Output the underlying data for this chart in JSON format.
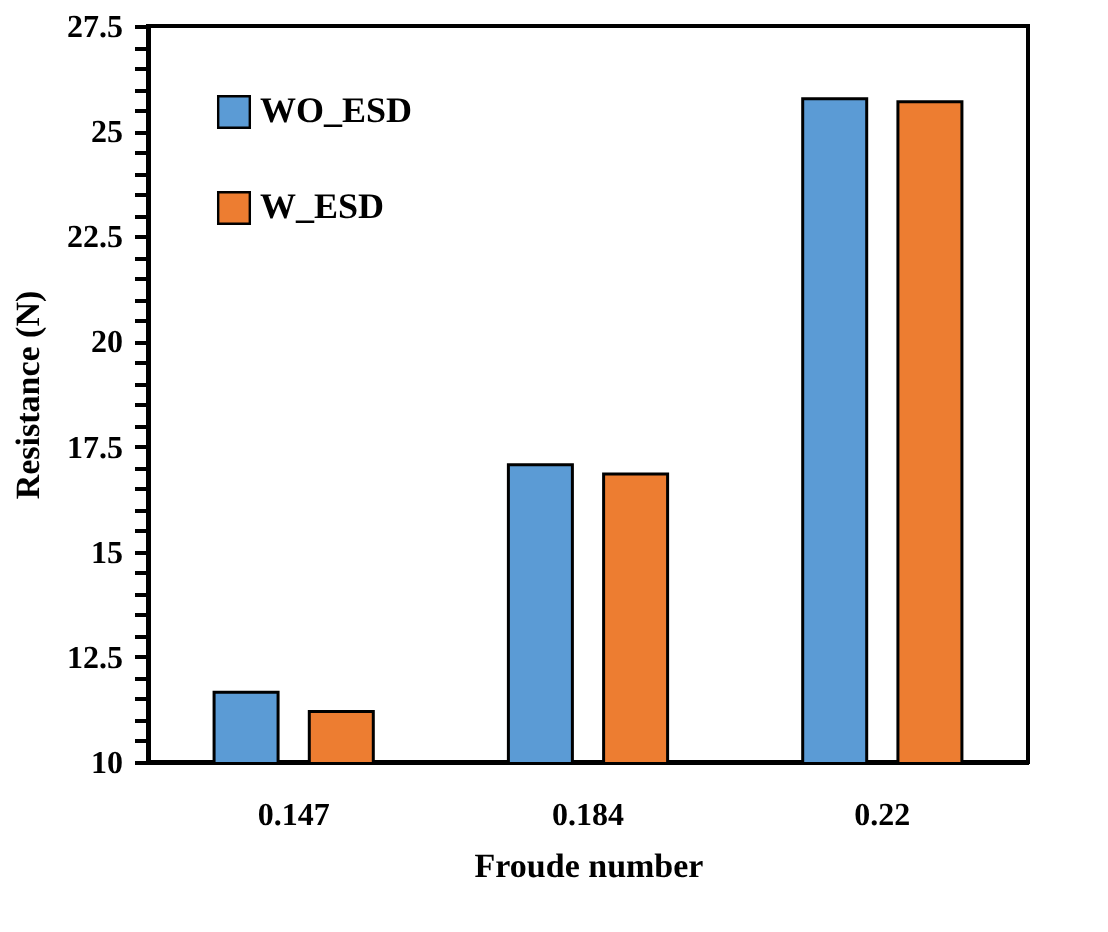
{
  "chart_data": {
    "type": "bar",
    "xlabel": "Froude number",
    "ylabel": "Resistance (N)",
    "categories": [
      "0.147",
      "0.184",
      "0.22"
    ],
    "series": [
      {
        "name": "WO_ESD",
        "color": "#5b9bd5",
        "values": [
          11.66,
          17.07,
          25.77
        ]
      },
      {
        "name": "W_ESD",
        "color": "#ed7d31",
        "values": [
          11.2,
          16.85,
          25.7
        ]
      }
    ],
    "ylim": [
      10,
      27.5
    ],
    "yticks": [
      10,
      {
        "value": 10.5,
        "label": null
      },
      {
        "value": 11,
        "label": null
      },
      {
        "value": 11.5,
        "label": null
      },
      {
        "value": 12,
        "label": null
      },
      12.5,
      {
        "value": 13,
        "label": null
      },
      {
        "value": 13.5,
        "label": null
      },
      {
        "value": 14,
        "label": null
      },
      {
        "value": 14.5,
        "label": null
      },
      15,
      {
        "value": 15.5,
        "label": null
      },
      {
        "value": 16,
        "label": null
      },
      {
        "value": 16.5,
        "label": null
      },
      {
        "value": 17,
        "label": null
      },
      17.5,
      {
        "value": 18,
        "label": null
      },
      {
        "value": 18.5,
        "label": null
      },
      {
        "value": 19,
        "label": null
      },
      {
        "value": 19.5,
        "label": null
      },
      20,
      {
        "value": 20.5,
        "label": null
      },
      {
        "value": 21,
        "label": null
      },
      {
        "value": 21.5,
        "label": null
      },
      {
        "value": 22,
        "label": null
      },
      22.5,
      {
        "value": 23,
        "label": null
      },
      {
        "value": 23.5,
        "label": null
      },
      {
        "value": 24,
        "label": null
      },
      {
        "value": 24.5,
        "label": null
      },
      25,
      {
        "value": 25.5,
        "label": null
      },
      {
        "value": 26,
        "label": null
      },
      {
        "value": 26.5,
        "label": null
      },
      {
        "value": 27,
        "label": null
      },
      27.5
    ],
    "grid": false,
    "legend": "top left"
  }
}
